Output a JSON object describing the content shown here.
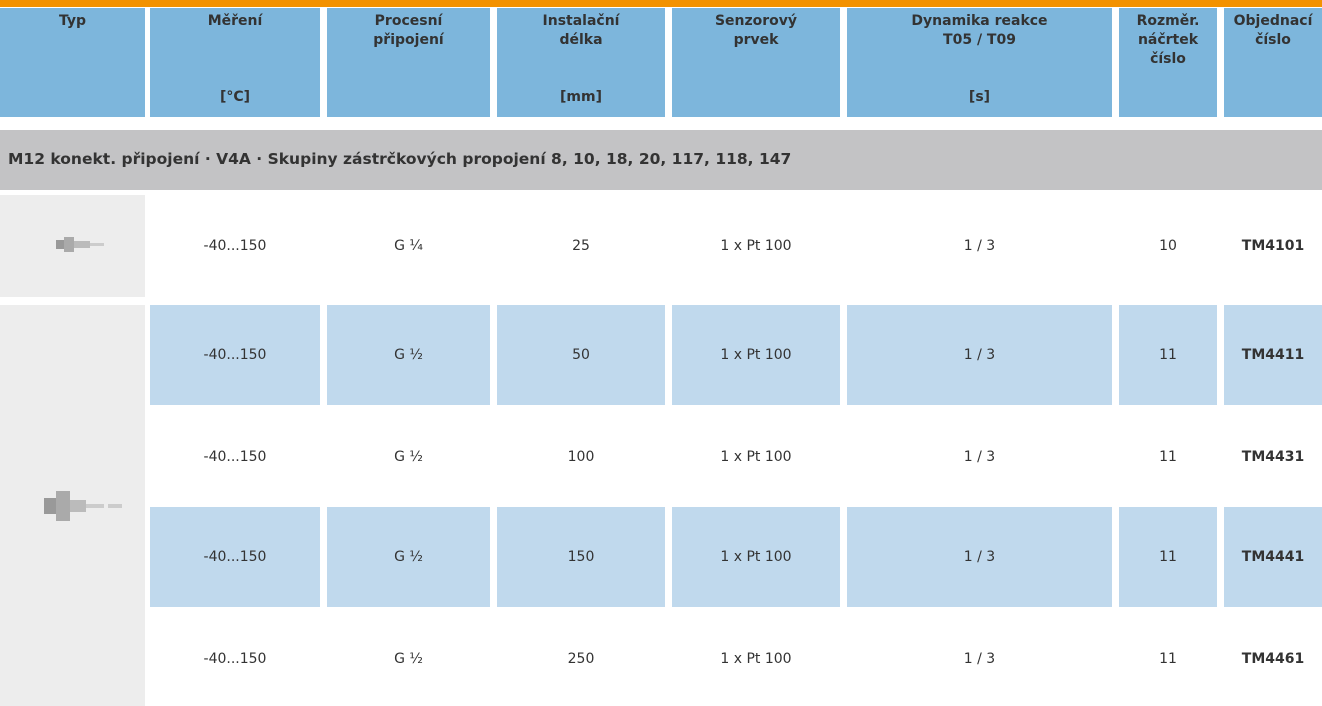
{
  "header": {
    "columns": [
      {
        "lines": [
          "Typ"
        ]
      },
      {
        "lines": [
          "Měření"
        ],
        "unit": "[°C]"
      },
      {
        "lines": [
          "Procesní",
          "připojení"
        ]
      },
      {
        "lines": [
          "Instalační",
          "délka"
        ],
        "unit": "[mm]"
      },
      {
        "lines": [
          "Senzorový",
          "prvek"
        ]
      },
      {
        "lines": [
          "Dynamika reakce",
          "T05 / T09"
        ],
        "unit": "[s]"
      },
      {
        "lines": [
          "Rozměr.",
          "náčrtek",
          "číslo"
        ]
      },
      {
        "lines": [
          "Objednací",
          "číslo"
        ]
      }
    ]
  },
  "section": {
    "title": "M12 konekt. připojení · V4A · Skupiny zástrčkových propojení 8, 10, 18, 20, 117, 118, 147"
  },
  "table": {
    "rows": [
      [
        "-40...150",
        "G ¼",
        "25",
        "1 x Pt 100",
        "1 / 3",
        "10",
        "TM4101"
      ],
      [
        "-40...150",
        "G ½",
        "50",
        "1 x Pt 100",
        "1 / 3",
        "11",
        "TM4411"
      ],
      [
        "-40...150",
        "G ½",
        "100",
        "1 x Pt 100",
        "1 / 3",
        "11",
        "TM4431"
      ],
      [
        "-40...150",
        "G ½",
        "150",
        "1 x Pt 100",
        "1 / 3",
        "11",
        "TM4441"
      ],
      [
        "-40...150",
        "G ½",
        "250",
        "1 x Pt 100",
        "1 / 3",
        "11",
        "TM4461"
      ]
    ]
  }
}
